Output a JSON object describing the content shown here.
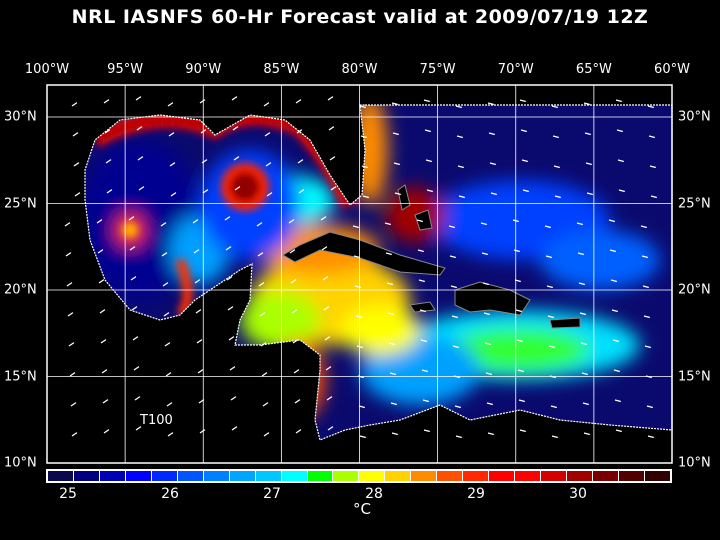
{
  "title": "NRL IASNFS  60-Hr Forecast valid at 2009/07/19 12Z",
  "map": {
    "longitude_labels": [
      "100°W",
      "95°W",
      "90°W",
      "85°W",
      "80°W",
      "75°W",
      "70°W",
      "65°W",
      "60°W"
    ],
    "latitude_labels": [
      "30°N",
      "25°N",
      "20°N",
      "15°N",
      "10°N"
    ],
    "annotation": "T100",
    "ocean_background": "#0a0a6e"
  },
  "colorbar": {
    "colors": [
      "#0a0a4a",
      "#00007f",
      "#0000b4",
      "#0000ff",
      "#0028ff",
      "#0055ff",
      "#0080ff",
      "#00a5ff",
      "#00c8ff",
      "#00ffff",
      "#00ff00",
      "#aaff00",
      "#ffff00",
      "#ffd200",
      "#ff8c00",
      "#ff5000",
      "#ff2800",
      "#ff0000",
      "#ff0000",
      "#d20000",
      "#a00000",
      "#780000",
      "#500000",
      "#300000"
    ],
    "tick_labels": [
      "25",
      "26",
      "27",
      "28",
      "29",
      "30"
    ],
    "unit": "°C"
  }
}
